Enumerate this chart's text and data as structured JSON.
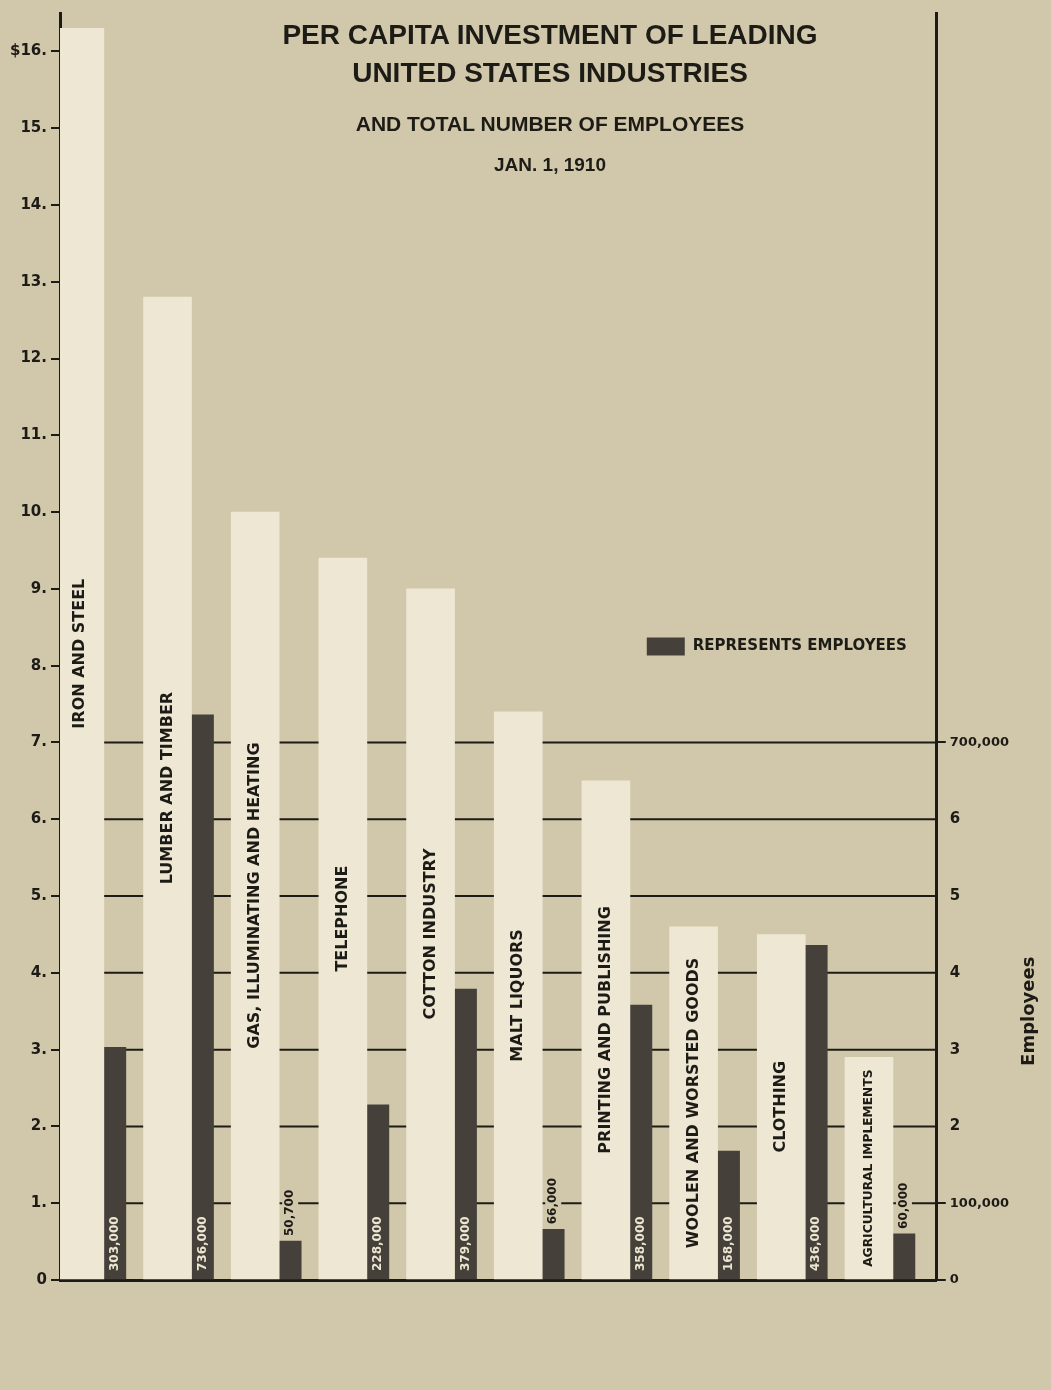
{
  "chart_data": {
    "type": "bar",
    "title": "PER CAPITA INVESTMENT OF LEADING UNITED STATES INDUSTRIES",
    "subtitle": "AND TOTAL NUMBER OF EMPLOYEES",
    "annotations": [
      "JAN. 1, 1910"
    ],
    "y2label": "Employees",
    "categories": [
      "IRON AND STEEL",
      "LUMBER AND TIMBER",
      "GAS, ILLUMINATING AND HEATING",
      "TELEPHONE",
      "COTTON INDUSTRY",
      "MALT LIQUORS",
      "PRINTING AND PUBLISHING",
      "WOOLEN AND WORSTED GOODS",
      "CLOTHING",
      "AGRICULTURAL IMPLEMENTS"
    ],
    "series": [
      {
        "color": "#ede7d4",
        "values": [
          16.3,
          12.8,
          10.0,
          9.4,
          9.0,
          7.4,
          6.5,
          4.6,
          4.5,
          2.9
        ]
      },
      {
        "name": "REPRESENTS EMPLOYEES",
        "color": "#45413a",
        "axis": "y2",
        "values": [
          303000,
          736000,
          50700,
          228000,
          379000,
          66000,
          358000,
          168000,
          436000,
          60000
        ],
        "value_labels": [
          "303,000",
          "736,000",
          "50,700",
          "228,000",
          "379,000",
          "66,000",
          "358,000",
          "168,000",
          "436,000",
          "60,000"
        ]
      }
    ],
    "ylim": [
      0,
      16.5
    ],
    "yticks": [
      0,
      {
        "value": 1,
        "label": "1."
      },
      {
        "value": 2,
        "label": "2."
      },
      {
        "value": 3,
        "label": "3."
      },
      {
        "value": 4,
        "label": "4."
      },
      {
        "value": 5,
        "label": "5."
      },
      {
        "value": 6,
        "label": "6."
      },
      {
        "value": 7,
        "label": "7."
      },
      {
        "value": 8,
        "label": "8."
      },
      {
        "value": 9,
        "label": "9."
      },
      {
        "value": 10,
        "label": "10."
      },
      {
        "value": 11,
        "label": "11."
      },
      {
        "value": 12,
        "label": "12."
      },
      {
        "value": 13,
        "label": "13."
      },
      {
        "value": 14,
        "label": "14."
      },
      {
        "value": 15,
        "label": "15."
      },
      {
        "value": 16,
        "label": "$16."
      }
    ],
    "y2lim": [
      0,
      1650000
    ],
    "y2ticks": [
      0,
      {
        "value": 100000,
        "label": "100,000"
      },
      {
        "value": 700000,
        "label": "700,000"
      }
    ],
    "y3lim": [
      0,
      16.5
    ],
    "y3ticks": [
      2,
      3,
      4,
      5,
      6
    ],
    "grid": "y",
    "legend": "right"
  }
}
